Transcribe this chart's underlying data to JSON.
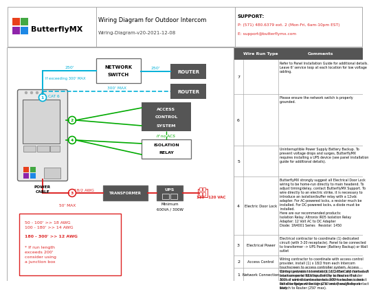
{
  "title": "Wiring Diagram for Outdoor Intercom",
  "subtitle": "Wiring-Diagram-v20-2021-12-08",
  "logo_text": "ButterflyMX",
  "support_label": "SUPPORT:",
  "support_phone": "P: (571) 480.6379 ext. 2 (Mon-Fri, 6am-10pm EST)",
  "support_email": "E: support@butterflymx.com",
  "bg_color": "#ffffff",
  "cyan": "#00b0d8",
  "green": "#00aa00",
  "red": "#dd2222",
  "dark_gray": "#555555",
  "mid_gray": "#888888",
  "wire_run_types": [
    "Network Connection",
    "Access Control",
    "Electrical Power",
    "Electric Door Lock",
    "",
    "",
    ""
  ],
  "row_numbers": [
    "1",
    "2",
    "3",
    "4",
    "5",
    "6",
    "7"
  ],
  "c1": "Wiring contractor to install (1) x Cat5e/Cat6 from each intercom panel location directly to Router. If under 300', if wire distance exceeds 300' to router, connect Panel to Network Switch (250' max) and Network Switch to Router (250' max).",
  "c2": "Wiring contractor to coordinate with access control provider, install (1) x 18/2 from each Intercom touchscreen to access controller system. Access Control provider to terminate 18/2 from dry contact of touchscreen to REX Input of the access control. Access control contractor to confirm electronic lock will disengage when signal is sent through dry contact relay.",
  "c3": "Electrical contractor to coordinate (1) dedicated circuit (with 3-20 receptacle). Panel to be connected to transformer -> UPS Power (Battery Backup) or Wall outlet",
  "c4": "ButterflyMX strongly suggest all Electrical Door Lock wiring to be home-run directly to main headend. To adjust timing/delay, contact ButterflyMX Support. To wire directly to an electric strike, it is necessary to introduce an isolation/buffer relay with a 12vdc adapter. For AC-powered locks, a resistor much be installed. For DC-powered locks, a diode must be installed.\nHere are our recommended products:\nIsolation Relay: Altronix IR05 Isolation Relay\nAdapter: 12 Volt AC to DC Adapter\nDiode: 1N4001 Series   Resistor: 1450",
  "c5": "Uninterruptible Power Supply Battery Backup. To prevent voltage drops and surges, ButterflyMX requires installing a UPS device (see panel installation guide for additional details).",
  "c6": "Please ensure the network switch is properly grounded.",
  "c7": "Refer to Panel Installation Guide for additional details. Leave 6' service loop at each location for low voltage cabling.",
  "sq_colors": [
    "#e8401c",
    "#43a843",
    "#8e24aa",
    "#1e88e5"
  ],
  "dot_colors": [
    "#e8401c",
    "#43a843",
    "#8e24aa",
    "#1e88e5"
  ]
}
